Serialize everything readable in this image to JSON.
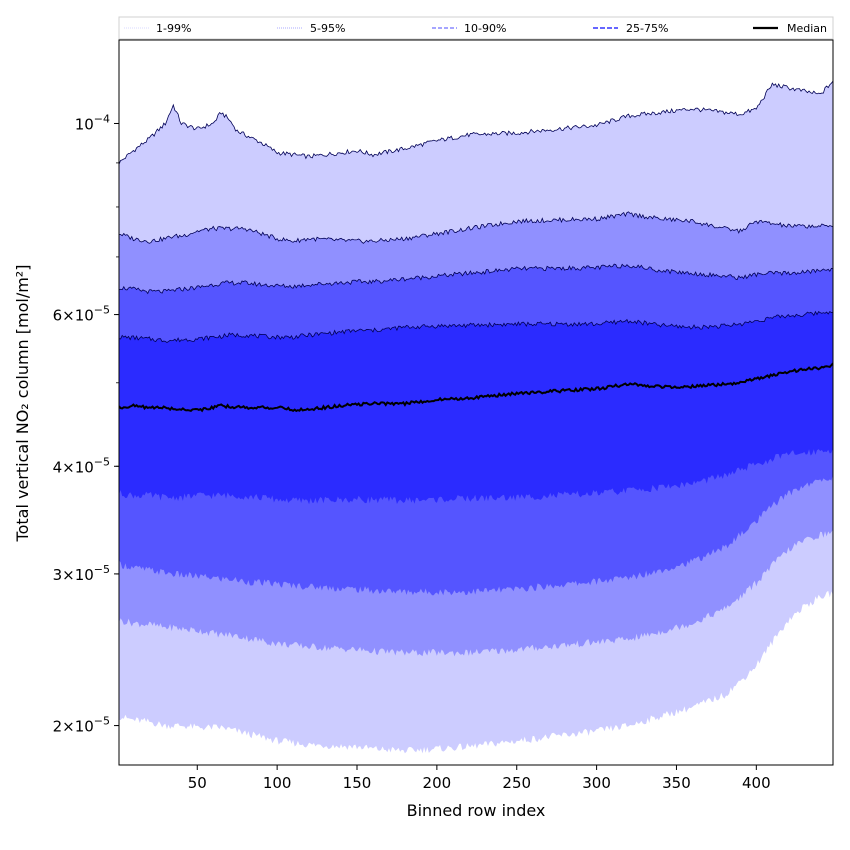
{
  "chart_data": {
    "type": "area",
    "xlabel": "Binned row index",
    "ylabel": "Total vertical NO₂ column [mol/m²]",
    "y_scale": "log",
    "xlim": [
      1,
      448
    ],
    "ylim": [
      1.8e-05,
      0.000125
    ],
    "x_ticks": [
      50,
      100,
      150,
      200,
      250,
      300,
      350,
      400
    ],
    "y_ticks": [
      {
        "value": 2e-05,
        "mant": "2",
        "exp": "−5"
      },
      {
        "value": 3e-05,
        "mant": "3",
        "exp": "−5"
      },
      {
        "value": 4e-05,
        "mant": "4",
        "exp": "−5"
      },
      {
        "value": 6e-05,
        "mant": "6",
        "exp": "−5"
      },
      {
        "value": 0.0001,
        "mant": "",
        "exp": "−4"
      }
    ],
    "legend": {
      "placement": "top",
      "entries": [
        "1-99%",
        "5-95%",
        "10-90%",
        "25-75%",
        "Median"
      ]
    },
    "x": [
      1,
      10,
      20,
      30,
      35,
      40,
      50,
      60,
      65,
      70,
      75,
      80,
      90,
      100,
      110,
      120,
      150,
      160,
      180,
      200,
      220,
      250,
      300,
      320,
      340,
      360,
      380,
      390,
      400,
      410,
      420,
      430,
      440,
      448
    ],
    "bands": [
      {
        "name": "1-99%",
        "color": "#ccccff",
        "lower": [
          2.05e-05,
          2.03e-05,
          2.02e-05,
          2e-05,
          2e-05,
          2e-05,
          1.99e-05,
          1.99e-05,
          1.99e-05,
          1.98e-05,
          1.97e-05,
          1.96e-05,
          1.94e-05,
          1.92e-05,
          1.91e-05,
          1.9e-05,
          1.89e-05,
          1.88e-05,
          1.87e-05,
          1.88e-05,
          1.89e-05,
          1.92e-05,
          1.97e-05,
          2e-05,
          2.05e-05,
          2.1e-05,
          2.17e-05,
          2.25e-05,
          2.35e-05,
          2.5e-05,
          2.65e-05,
          2.75e-05,
          2.82e-05,
          2.85e-05
        ],
        "upper": [
          9e-05,
          9.3e-05,
          9.6e-05,
          0.0001,
          0.000105,
          0.0001,
          9.85e-05,
          0.0001,
          0.000103,
          0.000101,
          9.8e-05,
          9.7e-05,
          9.5e-05,
          9.25e-05,
          9.2e-05,
          9.15e-05,
          9.3e-05,
          9.2e-05,
          9.35e-05,
          9.55e-05,
          9.7e-05,
          9.75e-05,
          9.95e-05,
          0.000102,
          0.000103,
          0.000104,
          0.000103,
          0.0001025,
          0.000104,
          0.000111,
          0.00011,
          0.000109,
          0.000108,
          0.000112
        ]
      },
      {
        "name": "5-95%",
        "color": "#9090ff",
        "lower": [
          2.65e-05,
          2.63e-05,
          2.62e-05,
          2.6e-05,
          2.6e-05,
          2.59e-05,
          2.58e-05,
          2.56e-05,
          2.55e-05,
          2.55e-05,
          2.54e-05,
          2.53e-05,
          2.51e-05,
          2.49e-05,
          2.48e-05,
          2.47e-05,
          2.45e-05,
          2.44e-05,
          2.43e-05,
          2.43e-05,
          2.43e-05,
          2.45e-05,
          2.5e-05,
          2.52e-05,
          2.57e-05,
          2.63e-05,
          2.73e-05,
          2.82e-05,
          2.93e-05,
          3.07e-05,
          3.2e-05,
          3.28e-05,
          3.33e-05,
          3.35e-05
        ],
        "upper": [
          7.45e-05,
          7.35e-05,
          7.3e-05,
          7.35e-05,
          7.4e-05,
          7.4e-05,
          7.5e-05,
          7.55e-05,
          7.55e-05,
          7.55e-05,
          7.55e-05,
          7.55e-05,
          7.45e-05,
          7.35e-05,
          7.3e-05,
          7.35e-05,
          7.3e-05,
          7.3e-05,
          7.35e-05,
          7.45e-05,
          7.55e-05,
          7.7e-05,
          7.75e-05,
          7.85e-05,
          7.75e-05,
          7.7e-05,
          7.55e-05,
          7.5e-05,
          7.7e-05,
          7.65e-05,
          7.6e-05,
          7.6e-05,
          7.6e-05,
          7.6e-05
        ]
      },
      {
        "name": "10-90%",
        "color": "#5555ff",
        "lower": [
          3.08e-05,
          3.05e-05,
          3.03e-05,
          3.01e-05,
          3e-05,
          2.99e-05,
          2.98e-05,
          2.97e-05,
          2.96e-05,
          2.96e-05,
          2.95e-05,
          2.94e-05,
          2.93e-05,
          2.92e-05,
          2.91e-05,
          2.9e-05,
          2.88e-05,
          2.87e-05,
          2.86e-05,
          2.86e-05,
          2.86e-05,
          2.88e-05,
          2.94e-05,
          2.97e-05,
          3.03e-05,
          3.1e-05,
          3.22e-05,
          3.33e-05,
          3.45e-05,
          3.6e-05,
          3.72e-05,
          3.8e-05,
          3.85e-05,
          3.88e-05
        ],
        "upper": [
          6.45e-05,
          6.42e-05,
          6.38e-05,
          6.38e-05,
          6.4e-05,
          6.42e-05,
          6.45e-05,
          6.5e-05,
          6.52e-05,
          6.53e-05,
          6.53e-05,
          6.53e-05,
          6.5e-05,
          6.48e-05,
          6.47e-05,
          6.5e-05,
          6.55e-05,
          6.55e-05,
          6.6e-05,
          6.65e-05,
          6.7e-05,
          6.78e-05,
          6.8e-05,
          6.85e-05,
          6.75e-05,
          6.7e-05,
          6.65e-05,
          6.62e-05,
          6.68e-05,
          6.7e-05,
          6.7e-05,
          6.72e-05,
          6.75e-05,
          6.78e-05
        ]
      },
      {
        "name": "25-75%",
        "color": "#2b2bff",
        "lower": [
          3.72e-05,
          3.7e-05,
          3.7e-05,
          3.68e-05,
          3.68e-05,
          3.68e-05,
          3.7e-05,
          3.7e-05,
          3.7e-05,
          3.7e-05,
          3.7e-05,
          3.69e-05,
          3.68e-05,
          3.66e-05,
          3.65e-05,
          3.65e-05,
          3.66e-05,
          3.66e-05,
          3.65e-05,
          3.66e-05,
          3.67e-05,
          3.68e-05,
          3.72e-05,
          3.75e-05,
          3.78e-05,
          3.82e-05,
          3.9e-05,
          3.96e-05,
          4.02e-05,
          4.08e-05,
          4.13e-05,
          4.15e-05,
          4.17e-05,
          4.18e-05
        ],
        "upper": [
          5.65e-05,
          5.64e-05,
          5.62e-05,
          5.6e-05,
          5.6e-05,
          5.61e-05,
          5.62e-05,
          5.65e-05,
          5.66e-05,
          5.68e-05,
          5.68e-05,
          5.68e-05,
          5.66e-05,
          5.65e-05,
          5.65e-05,
          5.68e-05,
          5.75e-05,
          5.75e-05,
          5.8e-05,
          5.82e-05,
          5.83e-05,
          5.85e-05,
          5.85e-05,
          5.9e-05,
          5.83e-05,
          5.8e-05,
          5.82e-05,
          5.85e-05,
          5.9e-05,
          5.95e-05,
          5.98e-05,
          6e-05,
          6.03e-05,
          6.05e-05
        ]
      }
    ],
    "median": {
      "name": "Median",
      "color": "#000000",
      "values": [
        4.68e-05,
        4.7e-05,
        4.68e-05,
        4.68e-05,
        4.66e-05,
        4.66e-05,
        4.65e-05,
        4.68e-05,
        4.7e-05,
        4.69e-05,
        4.69e-05,
        4.68e-05,
        4.68e-05,
        4.68e-05,
        4.65e-05,
        4.66e-05,
        4.72e-05,
        4.73e-05,
        4.73e-05,
        4.78e-05,
        4.8e-05,
        4.86e-05,
        4.92e-05,
        4.98e-05,
        4.95e-05,
        4.95e-05,
        4.98e-05,
        5e-05,
        5.05e-05,
        5.1e-05,
        5.15e-05,
        5.18e-05,
        5.2e-05,
        5.25e-05
      ]
    }
  }
}
